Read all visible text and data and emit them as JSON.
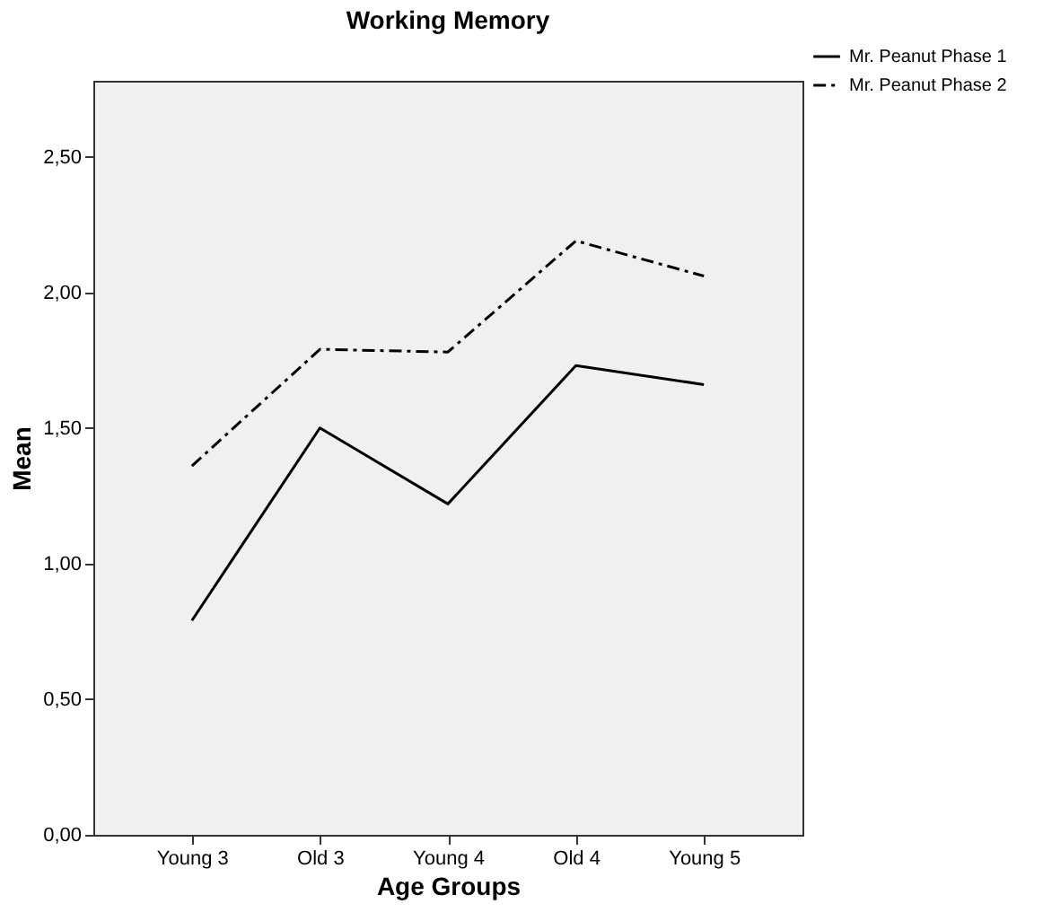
{
  "chart_data": {
    "type": "line",
    "title": "Working Memory",
    "xlabel": "Age Groups",
    "ylabel": "Mean",
    "categories": [
      "Young 3",
      "Old 3",
      "Young 4",
      "Old 4",
      "Young 5"
    ],
    "series": [
      {
        "name": "Mr. Peanut Phase 1",
        "color": "#000000",
        "line_style": "solid",
        "values": [
          0.79,
          1.5,
          1.22,
          1.73,
          1.66
        ]
      },
      {
        "name": "Mr. Peanut Phase 2",
        "color": "#000000",
        "line_style": "dashdot",
        "values": [
          1.36,
          1.79,
          1.78,
          2.19,
          2.06
        ]
      }
    ],
    "ylim": [
      0,
      2.78
    ],
    "yticks": [
      {
        "value": 0,
        "label": "0,00"
      },
      {
        "value": 0.5,
        "label": "0,50"
      },
      {
        "value": 1,
        "label": "1,00"
      },
      {
        "value": 1.5,
        "label": "1,50"
      },
      {
        "value": 2,
        "label": "2,00"
      },
      {
        "value": 2.5,
        "label": "2,50"
      }
    ],
    "grid": false,
    "legend": "top right",
    "marker": "none"
  }
}
